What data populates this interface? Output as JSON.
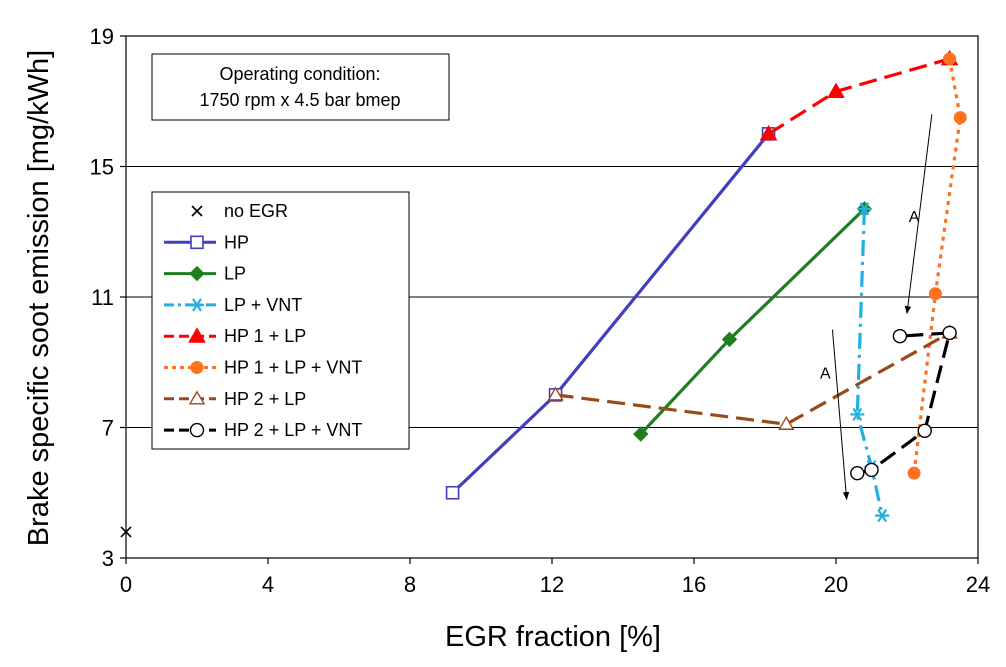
{
  "chart_data": {
    "type": "line",
    "xlabel": "EGR fraction [%]",
    "ylabel": "Brake specific soot emission [mg/kWh]",
    "xlim": [
      0,
      24
    ],
    "ylim": [
      3,
      19
    ],
    "xticks": [
      0,
      4,
      8,
      12,
      16,
      20,
      24
    ],
    "yticks": [
      3,
      7,
      11,
      15,
      19
    ],
    "grid": "horizontal",
    "legend_placement": "left",
    "note_lines": [
      "Operating condition:",
      "1750 rpm x 4.5 bar bmep"
    ],
    "series": [
      {
        "name": "no EGR",
        "color": "#000000",
        "marker": "x",
        "line": "none",
        "x": [
          0.0
        ],
        "y": [
          3.8
        ]
      },
      {
        "name": "HP",
        "color": "#3f3fbf",
        "marker": "square-open",
        "line": "solid",
        "x": [
          9.2,
          12.1,
          18.1
        ],
        "y": [
          5.0,
          8.0,
          16.0
        ]
      },
      {
        "name": "LP",
        "color": "#1e7f1e",
        "marker": "diamond",
        "line": "solid",
        "x": [
          14.5,
          17.0,
          20.8
        ],
        "y": [
          6.8,
          9.7,
          13.7
        ]
      },
      {
        "name": "LP + VNT",
        "color": "#22b0e0",
        "marker": "asterisk",
        "line": "dashdot",
        "x": [
          20.8,
          20.6,
          21.0,
          21.3
        ],
        "y": [
          13.7,
          7.4,
          5.8,
          4.3
        ]
      },
      {
        "name": "HP 1 + LP",
        "color": "#ff0000",
        "marker": "triangle",
        "line": "dash",
        "x": [
          18.1,
          20.0,
          23.2
        ],
        "y": [
          16.0,
          17.3,
          18.3
        ]
      },
      {
        "name": "HP 1 + LP + VNT",
        "color": "#ff7020",
        "marker": "circle",
        "line": "dot",
        "x": [
          23.2,
          23.5,
          22.8,
          22.2
        ],
        "y": [
          18.3,
          16.5,
          11.1,
          5.6
        ]
      },
      {
        "name": "HP 2 + LP",
        "color": "#9a4a1a",
        "marker": "triangle-open",
        "line": "dash",
        "x": [
          12.1,
          18.6,
          23.2
        ],
        "y": [
          8.0,
          7.1,
          9.9
        ]
      },
      {
        "name": "HP 2 + LP + VNT",
        "color": "#000000",
        "marker": "circle-open",
        "line": "dash",
        "x": [
          20.6,
          21.0,
          22.5,
          23.2,
          21.8
        ],
        "y": [
          5.6,
          5.7,
          6.9,
          9.9,
          9.8
        ]
      }
    ],
    "annotations": [
      {
        "text": "A",
        "x": 22.2,
        "y": 13.3,
        "arrow_from": [
          22.7,
          16.6
        ],
        "arrow_to": [
          22.0,
          10.5
        ]
      },
      {
        "text": "A",
        "x": 19.7,
        "y": 8.5,
        "arrow_from": [
          19.9,
          10.0
        ],
        "arrow_to": [
          20.3,
          4.8
        ]
      }
    ]
  }
}
